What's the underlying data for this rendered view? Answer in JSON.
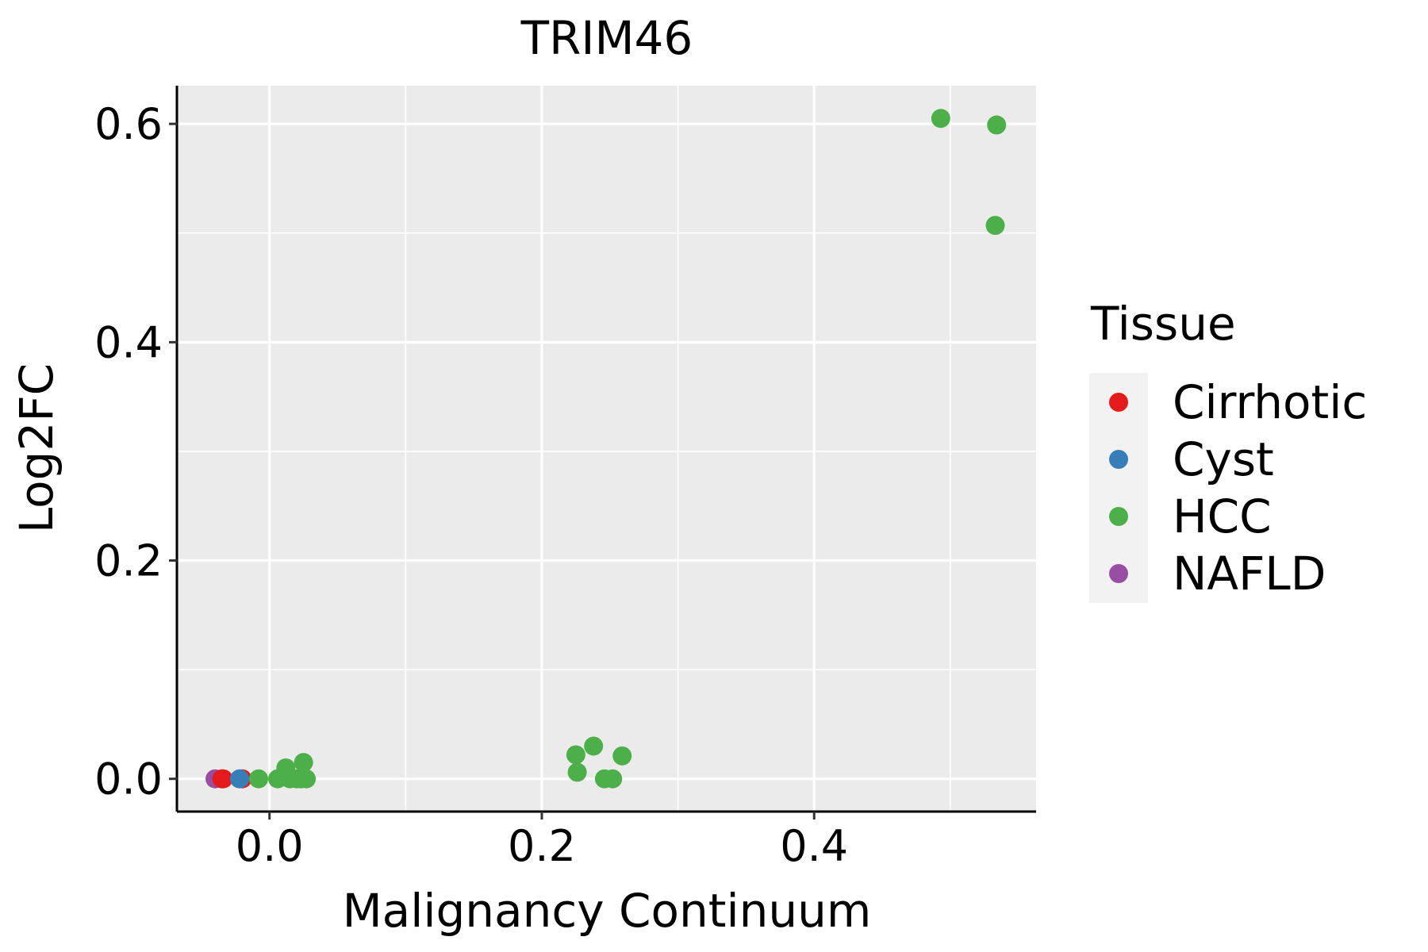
{
  "chart_data": {
    "type": "scatter",
    "title": "TRIM46",
    "xlabel": "Malignancy Continuum",
    "ylabel": "Log2FC",
    "xlim": [
      -0.068,
      0.563
    ],
    "ylim": [
      -0.03,
      0.635
    ],
    "xticks": [
      0.0,
      0.2,
      0.4
    ],
    "xtick_labels": [
      "0.0",
      "0.2",
      "0.4"
    ],
    "yticks": [
      0.0,
      0.2,
      0.4,
      0.6
    ],
    "ytick_labels": [
      "0.0",
      "0.2",
      "0.4",
      "0.6"
    ],
    "x_minor": [
      0.1,
      0.3,
      0.5
    ],
    "y_minor": [
      0.1,
      0.3,
      0.5
    ],
    "grid": true,
    "legend": {
      "title": "Tissue",
      "position": "right",
      "entries": [
        {
          "name": "Cirrhotic",
          "color": "#E41A1C"
        },
        {
          "name": "Cyst",
          "color": "#377EB8"
        },
        {
          "name": "HCC",
          "color": "#4DAF4A"
        },
        {
          "name": "NAFLD",
          "color": "#984EA3"
        }
      ]
    },
    "series": [
      {
        "name": "NAFLD",
        "color": "#984EA3",
        "points": [
          [
            -0.04,
            0.0
          ]
        ]
      },
      {
        "name": "Cirrhotic",
        "color": "#E41A1C",
        "points": [
          [
            -0.035,
            0.0
          ],
          [
            -0.02,
            0.0
          ],
          [
            -0.034,
            0.0
          ]
        ]
      },
      {
        "name": "Cyst",
        "color": "#377EB8",
        "points": [
          [
            -0.022,
            0.0
          ]
        ]
      },
      {
        "name": "HCC",
        "color": "#4DAF4A",
        "points": [
          [
            -0.008,
            0.0
          ],
          [
            0.006,
            0.0
          ],
          [
            0.012,
            0.01
          ],
          [
            0.015,
            0.0
          ],
          [
            0.02,
            0.0
          ],
          [
            0.023,
            0.0
          ],
          [
            0.025,
            0.015
          ],
          [
            0.027,
            0.0
          ],
          [
            0.225,
            0.022
          ],
          [
            0.226,
            0.006
          ],
          [
            0.238,
            0.03
          ],
          [
            0.246,
            0.0
          ],
          [
            0.252,
            0.0
          ],
          [
            0.259,
            0.021
          ],
          [
            0.493,
            0.605
          ],
          [
            0.534,
            0.599
          ],
          [
            0.533,
            0.507
          ]
        ]
      }
    ]
  }
}
